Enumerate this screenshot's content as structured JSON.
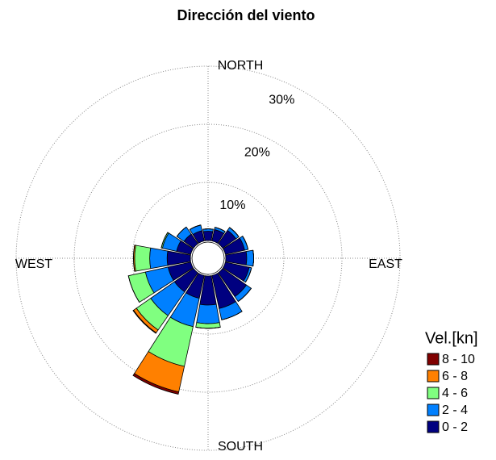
{
  "chart_data": {
    "type": "windrose",
    "title": "Dirección del viento",
    "categories": [
      null,
      null,
      null,
      null,
      null,
      null,
      null,
      null,
      null,
      null,
      null,
      null,
      null,
      null,
      null,
      null
    ],
    "series": [
      {
        "name": "0 - 2",
        "color": "#000080",
        "values": [
          1.6,
          2.0,
          2.8,
          3.4,
          3.6,
          4.2,
          5.0,
          5.8,
          5.0,
          4.0,
          4.0,
          4.0,
          4.0,
          2.5,
          2.0,
          1.8
        ]
      },
      {
        "name": "2 - 4",
        "color": "#0080ff",
        "values": [
          0.4,
          0.4,
          0.6,
          0.6,
          1.2,
          0.4,
          1.0,
          2.0,
          3.2,
          5.0,
          5.0,
          4.0,
          3.0,
          2.5,
          1.5,
          1.0
        ]
      },
      {
        "name": "4 - 6",
        "color": "#80ff80",
        "values": [
          0,
          0,
          0,
          0,
          0,
          0,
          0,
          0,
          0.8,
          7.0,
          3.0,
          3.0,
          2.6,
          0.2,
          0,
          0
        ]
      },
      {
        "name": "6 - 8",
        "color": "#ff8000",
        "values": [
          0,
          0,
          0,
          0,
          0,
          0,
          0,
          0,
          0,
          4.5,
          0.6,
          0,
          0.2,
          0,
          0,
          0
        ]
      },
      {
        "name": "8 - 10",
        "color": "#800000",
        "values": [
          0,
          0,
          0,
          0,
          0,
          0,
          0,
          0,
          0,
          0.4,
          0.1,
          0,
          0,
          0,
          0,
          0
        ]
      }
    ],
    "rlim": [
      0,
      30
    ],
    "rticks": [
      {
        "value": 10,
        "label": "10%"
      },
      {
        "value": 20,
        "label": "20%"
      },
      {
        "value": 30,
        "label": "30%"
      }
    ],
    "direction_labels": [
      "NORTH",
      "EAST",
      "SOUTH",
      "WEST"
    ],
    "legend_title": "Vel.[kn]",
    "grid": true
  }
}
